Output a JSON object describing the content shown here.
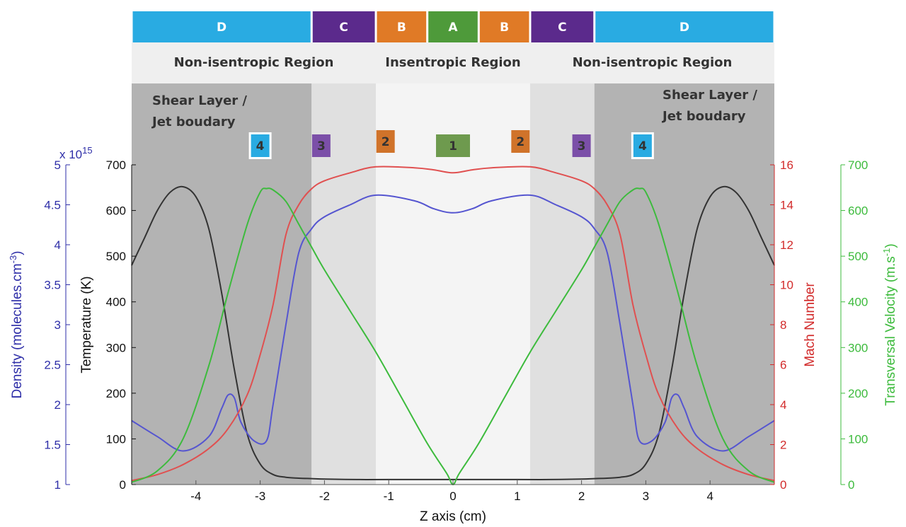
{
  "header_bands": [
    {
      "label": "D",
      "from": -5,
      "to": -2.2,
      "color": "#29abe2"
    },
    {
      "label": "C",
      "from": -2.2,
      "to": -1.2,
      "color": "#5b2a8c"
    },
    {
      "label": "B",
      "from": -1.2,
      "to": -0.4,
      "color": "#e07a26"
    },
    {
      "label": "A",
      "from": -0.4,
      "to": 0.4,
      "color": "#4e9a3a"
    },
    {
      "label": "B",
      "from": 0.4,
      "to": 1.2,
      "color": "#e07a26"
    },
    {
      "label": "C",
      "from": 1.2,
      "to": 2.2,
      "color": "#5b2a8c"
    },
    {
      "label": "D",
      "from": 2.2,
      "to": 5,
      "color": "#29abe2"
    }
  ],
  "regions": [
    {
      "label": "Non-isentropic Region",
      "from": -5,
      "to": -1.2
    },
    {
      "label": "Insentropic Region",
      "from": -1.2,
      "to": 1.2
    },
    {
      "label": "Non-isentropic Region",
      "from": 1.2,
      "to": 5
    }
  ],
  "shear_labels": {
    "left": [
      "Shear Layer /",
      "Jet boudary"
    ],
    "right": [
      "Shear Layer /",
      "Jet boudary"
    ]
  },
  "shade_zones": [
    {
      "from": -5,
      "to": -2.2,
      "color": "#b3b3b3"
    },
    {
      "from": -2.2,
      "to": -1.2,
      "color": "#e0e0e0"
    },
    {
      "from": -1.2,
      "to": 1.2,
      "color": "#f4f4f4"
    },
    {
      "from": 1.2,
      "to": 2.2,
      "color": "#e0e0e0"
    },
    {
      "from": 2.2,
      "to": 5,
      "color": "#b3b3b3"
    }
  ],
  "badges": [
    {
      "label": "4",
      "x": -3.0,
      "color": "#29abe2",
      "outlined": true
    },
    {
      "label": "3",
      "x": -2.05,
      "color": "#7b4fa8",
      "outlined": false
    },
    {
      "label": "2",
      "x": -1.05,
      "color": "#d0732a",
      "outlined": false
    },
    {
      "label": "1",
      "x": 0.0,
      "color": "#6e9a4e",
      "outlined": false
    },
    {
      "label": "2",
      "x": 1.05,
      "color": "#d0732a",
      "outlined": false
    },
    {
      "label": "3",
      "x": 2.0,
      "color": "#7b4fa8",
      "outlined": false
    },
    {
      "label": "4",
      "x": 2.95,
      "color": "#29abe2",
      "outlined": true
    }
  ],
  "chart_data": {
    "type": "line",
    "xlabel": "Z axis (cm)",
    "xlim": [
      -5,
      5
    ],
    "xticks": [
      -4,
      -3,
      -2,
      -1,
      0,
      1,
      2,
      3,
      4
    ],
    "axes": {
      "density": {
        "label": "Density (molecules.cm",
        "label_sup": "-3",
        "label_close": ")",
        "multiplier_base": "x 10",
        "multiplier_exp": "15",
        "lim": [
          1,
          5
        ],
        "ticks": [
          "1",
          "1.5",
          "2",
          "2.5",
          "3",
          "3.5",
          "4",
          "4.5",
          "5"
        ],
        "color": "#2e2ea8"
      },
      "temperature": {
        "label": "Temperature (K)",
        "lim": [
          0,
          700
        ],
        "ticks": [
          "0",
          "100",
          "200",
          "300",
          "400",
          "500",
          "600",
          "700"
        ],
        "color": "#111111"
      },
      "mach": {
        "label": "Mach Number",
        "lim": [
          0,
          16
        ],
        "ticks": [
          "0",
          "2",
          "4",
          "6",
          "8",
          "10",
          "12",
          "14",
          "16"
        ],
        "color": "#d22b2b"
      },
      "velocity": {
        "label": "Transversal Velocity (m.s",
        "label_sup": "-1",
        "label_close": ")",
        "lim": [
          0,
          700
        ],
        "ticks": [
          "0",
          "100",
          "200",
          "300",
          "400",
          "500",
          "600",
          "700"
        ],
        "color": "#3dbb3d"
      }
    },
    "series": [
      {
        "axis": "temperature",
        "color": "#333333",
        "x": [
          -5,
          -4.8,
          -4.6,
          -4.4,
          -4.2,
          -4.0,
          -3.8,
          -3.6,
          -3.4,
          -3.2,
          -3.0,
          -2.8,
          -2.6,
          -2.4,
          -2.2,
          -2.0,
          -1.5,
          -1.0,
          0,
          1.0,
          1.5,
          2.0,
          2.2,
          2.4,
          2.6,
          2.8,
          3.0,
          3.2,
          3.4,
          3.6,
          3.8,
          4.0,
          4.2,
          4.4,
          4.6,
          4.8,
          5
        ],
        "y": [
          480,
          540,
          600,
          640,
          652,
          630,
          560,
          420,
          250,
          110,
          45,
          22,
          16,
          14,
          13,
          12,
          11,
          11,
          11,
          11,
          11,
          12,
          13,
          14,
          16,
          22,
          45,
          110,
          250,
          420,
          560,
          630,
          652,
          640,
          600,
          540,
          480
        ]
      },
      {
        "axis": "density",
        "color": "#5555d0",
        "x": [
          -5,
          -4.6,
          -4.2,
          -3.8,
          -3.6,
          -3.5,
          -3.4,
          -3.3,
          -3.1,
          -2.9,
          -2.8,
          -2.6,
          -2.4,
          -2.2,
          -2.0,
          -1.6,
          -1.2,
          -0.6,
          -0.3,
          0,
          0.3,
          0.6,
          1.2,
          1.6,
          2.0,
          2.2,
          2.4,
          2.6,
          2.8,
          2.9,
          3.1,
          3.3,
          3.4,
          3.5,
          3.6,
          3.8,
          4.2,
          4.6,
          5
        ],
        "y": [
          1.8,
          1.6,
          1.42,
          1.6,
          1.95,
          2.12,
          2.08,
          1.78,
          1.55,
          1.55,
          2.0,
          3.0,
          3.9,
          4.2,
          4.35,
          4.5,
          4.62,
          4.55,
          4.45,
          4.4,
          4.45,
          4.55,
          4.62,
          4.5,
          4.35,
          4.2,
          3.9,
          3.0,
          2.0,
          1.55,
          1.55,
          1.78,
          2.08,
          2.12,
          1.95,
          1.6,
          1.42,
          1.6,
          1.8
        ]
      },
      {
        "axis": "mach",
        "color": "#e05050",
        "x": [
          -5,
          -4.6,
          -4.2,
          -3.8,
          -3.5,
          -3.2,
          -3.0,
          -2.8,
          -2.6,
          -2.4,
          -2.2,
          -2.0,
          -1.6,
          -1.2,
          -0.6,
          -0.3,
          0,
          0.3,
          0.6,
          1.2,
          1.6,
          2.0,
          2.2,
          2.4,
          2.6,
          2.8,
          3.0,
          3.2,
          3.5,
          3.8,
          4.2,
          4.6,
          5
        ],
        "y": [
          0.2,
          0.5,
          1.0,
          1.8,
          2.8,
          4.5,
          6.5,
          9.0,
          12.5,
          14.0,
          14.8,
          15.2,
          15.6,
          15.9,
          15.85,
          15.75,
          15.6,
          15.75,
          15.85,
          15.9,
          15.6,
          15.2,
          14.8,
          14.0,
          12.5,
          9.0,
          6.5,
          4.5,
          2.8,
          1.8,
          1.0,
          0.5,
          0.2
        ]
      },
      {
        "axis": "velocity",
        "color": "#3dbb3d",
        "x": [
          -5,
          -4.6,
          -4.2,
          -3.8,
          -3.5,
          -3.2,
          -3.0,
          -2.9,
          -2.8,
          -2.6,
          -2.4,
          -2.2,
          -2.0,
          -1.6,
          -1.2,
          -0.8,
          -0.4,
          -0.1,
          0,
          0.1,
          0.4,
          0.8,
          1.2,
          1.6,
          2.0,
          2.2,
          2.4,
          2.6,
          2.8,
          2.9,
          3.0,
          3.2,
          3.5,
          3.8,
          4.2,
          4.6,
          5
        ],
        "y": [
          5,
          30,
          100,
          260,
          420,
          570,
          640,
          648,
          645,
          620,
          570,
          520,
          470,
          380,
          290,
          190,
          90,
          25,
          0,
          25,
          90,
          190,
          290,
          380,
          470,
          520,
          570,
          620,
          645,
          648,
          640,
          570,
          420,
          260,
          100,
          30,
          5
        ]
      }
    ]
  }
}
